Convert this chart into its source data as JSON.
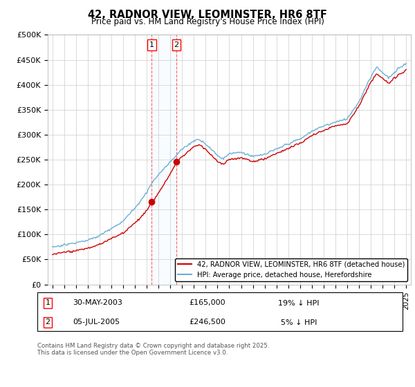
{
  "title": "42, RADNOR VIEW, LEOMINSTER, HR6 8TF",
  "subtitle": "Price paid vs. HM Land Registry's House Price Index (HPI)",
  "legend_line1": "42, RADNOR VIEW, LEOMINSTER, HR6 8TF (detached house)",
  "legend_line2": "HPI: Average price, detached house, Herefordshire",
  "footnote": "Contains HM Land Registry data © Crown copyright and database right 2025.\nThis data is licensed under the Open Government Licence v3.0.",
  "sale1_date": "30-MAY-2003",
  "sale1_price": "£165,000",
  "sale1_hpi": "19% ↓ HPI",
  "sale2_date": "05-JUL-2005",
  "sale2_price": "£246,500",
  "sale2_hpi": "5% ↓ HPI",
  "hpi_color": "#6baed6",
  "price_color": "#cc0000",
  "ylim": [
    0,
    500000
  ],
  "yticks": [
    0,
    50000,
    100000,
    150000,
    200000,
    250000,
    300000,
    350000,
    400000,
    450000,
    500000
  ],
  "sale1_x": 2003.42,
  "sale2_x": 2005.52,
  "background_color": "#ffffff",
  "grid_color": "#cccccc"
}
